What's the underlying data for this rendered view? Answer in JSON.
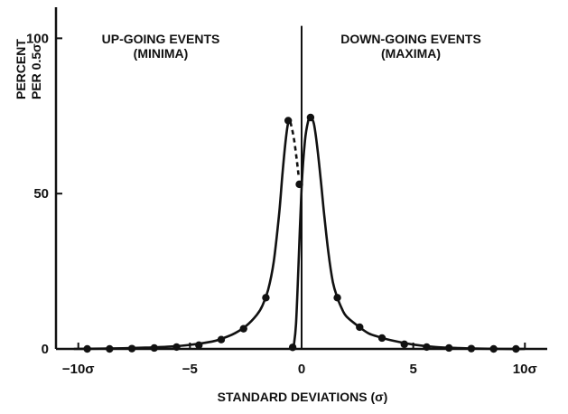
{
  "chart_data": {
    "type": "line",
    "title": "",
    "xlabel": "STANDARD DEVIATIONS (σ)",
    "ylabel_lines": [
      "PERCENT",
      "PER 0.5σ"
    ],
    "xlim": [
      -11,
      11
    ],
    "ylim": [
      0,
      110
    ],
    "grid": false,
    "x_ticks": [
      {
        "value": -10,
        "label": "−10σ"
      },
      {
        "value": -5,
        "label": "−5"
      },
      {
        "value": 0,
        "label": "0"
      },
      {
        "value": 5,
        "label": "5"
      },
      {
        "value": 10,
        "label": "10σ"
      }
    ],
    "y_ticks": [
      {
        "value": 0,
        "label": "0"
      },
      {
        "value": 50,
        "label": "50"
      },
      {
        "value": 100,
        "label": "100"
      }
    ],
    "annotations": [
      {
        "lines": [
          "UP-GOING EVENTS",
          "(MINIMA)"
        ],
        "anchor": "upper-left"
      },
      {
        "lines": [
          "DOWN-GOING EVENTS",
          "(MAXIMA)"
        ],
        "anchor": "upper-right"
      }
    ],
    "series": [
      {
        "points_x": [
          -9.6,
          -8.6,
          -7.6,
          -6.6,
          -5.6,
          -4.6,
          -3.6,
          -2.6,
          -1.6,
          -0.6,
          -0.1
        ],
        "points_y": [
          0,
          0,
          0.1,
          0.3,
          0.6,
          1.2,
          3,
          6.5,
          16.5,
          73.5,
          53
        ],
        "curve_x": [
          -10.2,
          -9,
          -8,
          -7,
          -6,
          -5,
          -4,
          -3.5,
          -3,
          -2.5,
          -2,
          -1.75,
          -1.5,
          -1.25,
          -1,
          -0.85,
          -0.7,
          -0.58,
          -0.5
        ],
        "curve_y": [
          0,
          0.1,
          0.2,
          0.4,
          0.7,
          1.3,
          2.4,
          3.5,
          5,
          7.3,
          11,
          14,
          19,
          28,
          44,
          57,
          68,
          73.5,
          73
        ],
        "dash_x": [
          -0.5,
          -0.35,
          -0.22,
          -0.12
        ],
        "dash_y": [
          73,
          68,
          61,
          55
        ],
        "color": "#111111"
      },
      {
        "points_x": [
          -0.4,
          0.4,
          1.6,
          2.6,
          3.6,
          4.6,
          5.6,
          6.6,
          7.6,
          8.6,
          9.6
        ],
        "points_y": [
          0.5,
          74.5,
          16.5,
          7,
          3.5,
          1.5,
          0.6,
          0.3,
          0.1,
          0,
          0
        ],
        "curve_x": [
          -0.35,
          -0.25,
          -0.15,
          0,
          0.15,
          0.3,
          0.4,
          0.55,
          0.7,
          0.85,
          1,
          1.2,
          1.4,
          1.6,
          1.8,
          2,
          2.5,
          3,
          3.5,
          4,
          5,
          6,
          7,
          8,
          9,
          10
        ],
        "curve_y": [
          1,
          8,
          25,
          52,
          67,
          73.5,
          74.5,
          72.5,
          65,
          55,
          44,
          31,
          21.5,
          16.5,
          13,
          10.5,
          7.5,
          5,
          3.8,
          2.8,
          1.4,
          0.6,
          0.3,
          0.1,
          0,
          0
        ],
        "color": "#111111"
      }
    ],
    "center_line": {
      "x": 0,
      "y_top": 104
    }
  }
}
